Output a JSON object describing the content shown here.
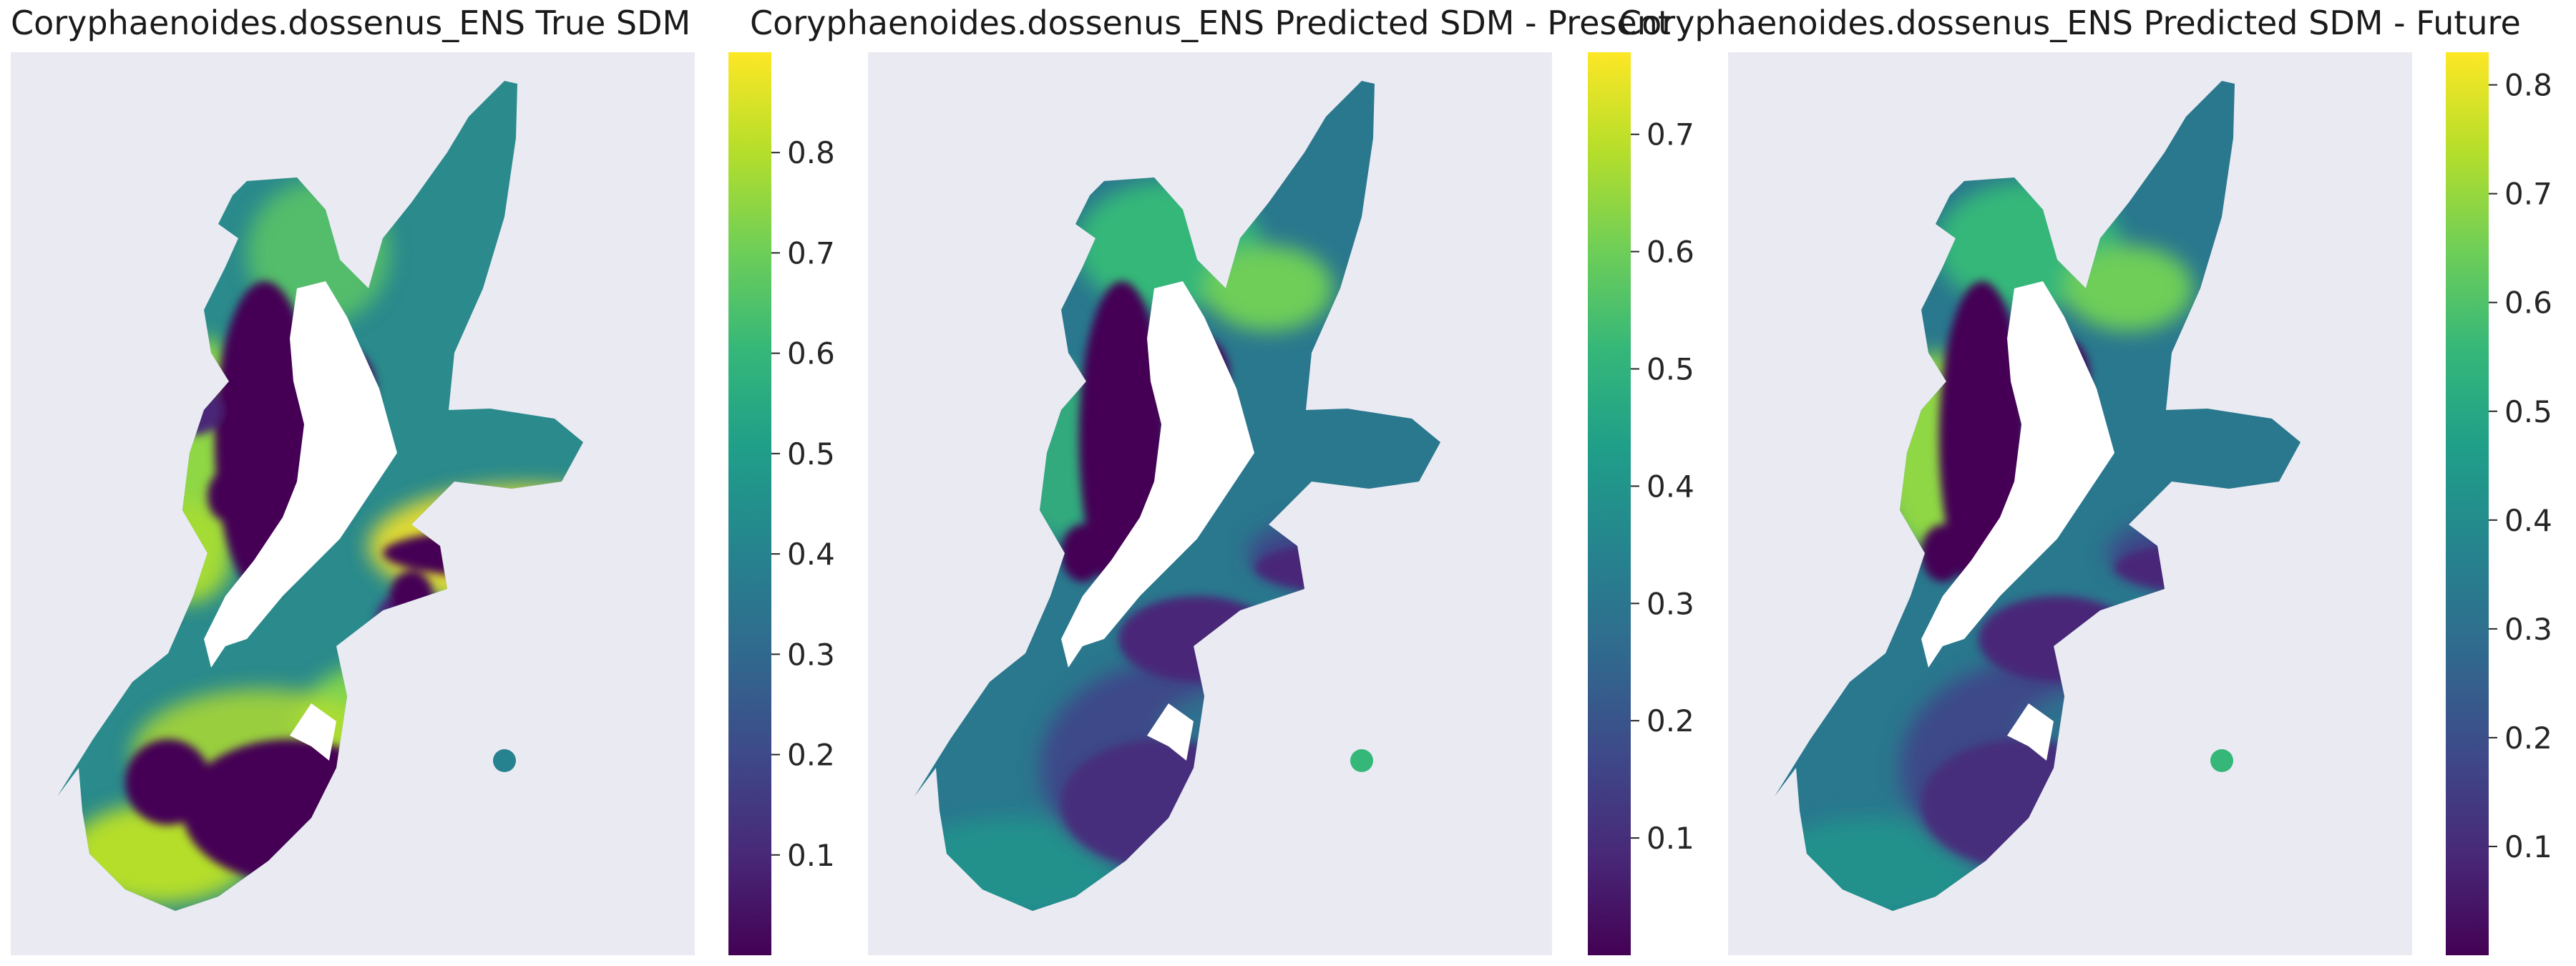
{
  "chart_data": [
    {
      "type": "heatmap",
      "title": "Coryphaenoides.dossenus_ENS True SDM",
      "xlabel": "",
      "ylabel": "",
      "colormap": "viridis",
      "colorbar": {
        "range": [
          0.0,
          0.9
        ],
        "ticks": [
          0.1,
          0.2,
          0.3,
          0.4,
          0.5,
          0.6,
          0.7,
          0.8
        ]
      },
      "grid": false
    },
    {
      "type": "heatmap",
      "title": "Coryphaenoides.dossenus_ENS Predicted SDM - Present",
      "xlabel": "",
      "ylabel": "",
      "colormap": "viridis",
      "colorbar": {
        "range": [
          0.0,
          0.77
        ],
        "ticks": [
          0.1,
          0.2,
          0.3,
          0.4,
          0.5,
          0.6,
          0.7
        ]
      },
      "grid": false
    },
    {
      "type": "heatmap",
      "title": "Coryphaenoides.dossenus_ENS Predicted SDM - Future",
      "xlabel": "",
      "ylabel": "",
      "colormap": "viridis",
      "colorbar": {
        "range": [
          0.0,
          0.83
        ],
        "ticks": [
          0.1,
          0.2,
          0.3,
          0.4,
          0.5,
          0.6,
          0.7,
          0.8
        ]
      },
      "grid": false
    }
  ],
  "colors": {
    "plot_background": "#eaeaf2",
    "land_mask": "#ffffff",
    "viridis_stops": [
      "#440154",
      "#482878",
      "#3e4989",
      "#31688e",
      "#26828e",
      "#1f9e89",
      "#35b779",
      "#6ece58",
      "#b5de2b",
      "#fde725"
    ]
  }
}
